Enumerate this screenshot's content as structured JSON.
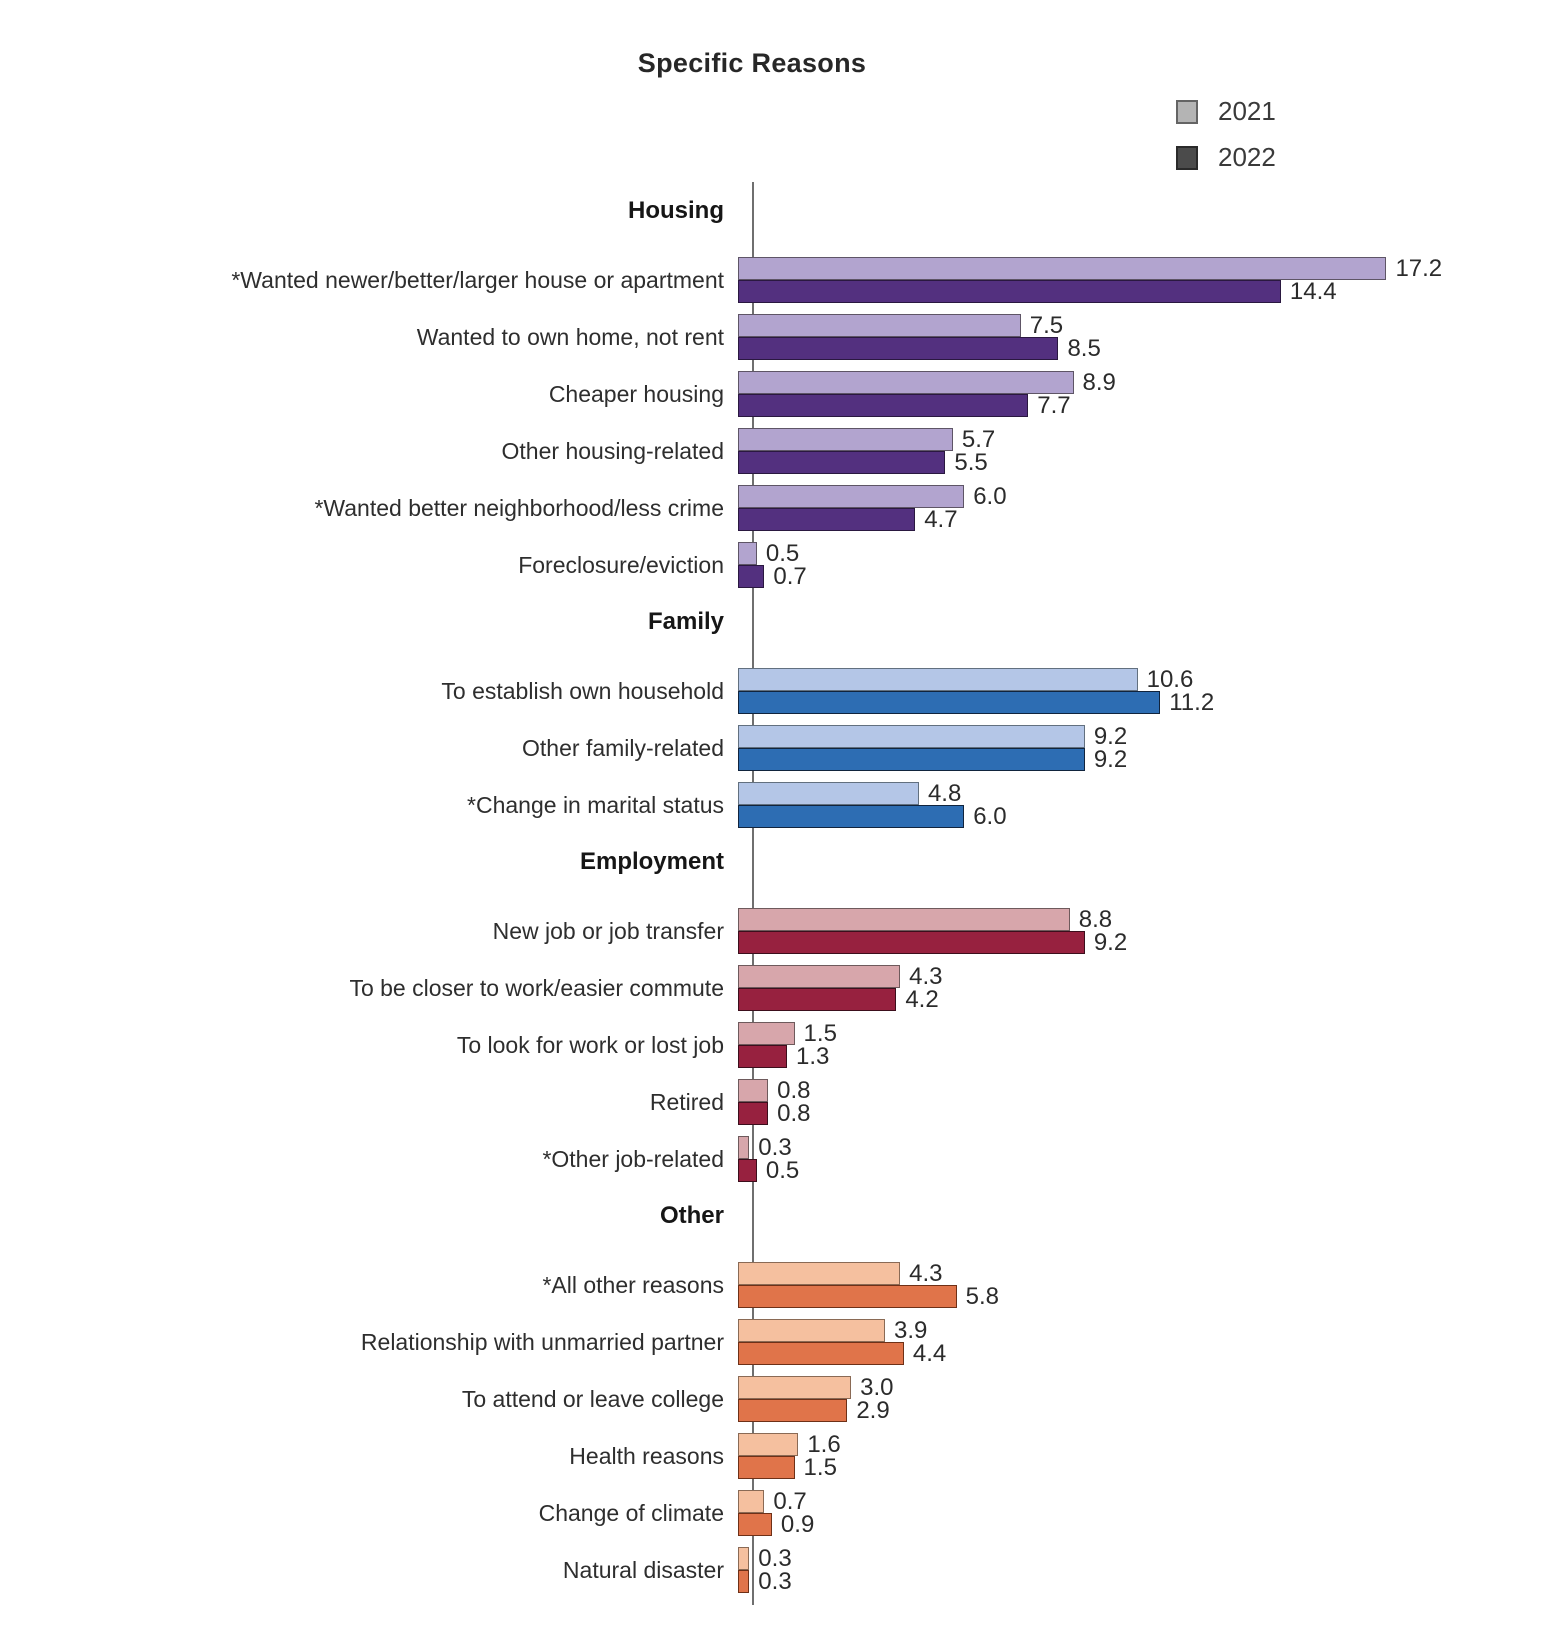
{
  "title": "Specific Reasons",
  "legend": {
    "items": [
      {
        "label": "2021",
        "fill": "#b4b4b4",
        "border": "#646464"
      },
      {
        "label": "2022",
        "fill": "#4b4b4b",
        "border": "#2a2a2a"
      }
    ]
  },
  "chart_data": {
    "type": "bar",
    "orientation": "horizontal",
    "title": "Specific Reasons",
    "series_names": [
      "2021",
      "2022"
    ],
    "xlim": [
      0,
      18
    ],
    "grid": false,
    "legend_position": "top-right",
    "value_label_format": "one-decimal",
    "sections": [
      {
        "name": "Housing",
        "color_2021": "#b2a4cf",
        "color_2022": "#53307f",
        "border_2021": "#5e5566",
        "border_2022": "#2a1840",
        "rows": [
          {
            "label": "*Wanted newer/better/larger house or apartment",
            "v2021": 17.2,
            "v2022": 14.4
          },
          {
            "label": "Wanted to own home, not rent",
            "v2021": 7.5,
            "v2022": 8.5
          },
          {
            "label": "Cheaper housing",
            "v2021": 8.9,
            "v2022": 7.7
          },
          {
            "label": "Other housing-related",
            "v2021": 5.7,
            "v2022": 5.5
          },
          {
            "label": "*Wanted better neighborhood/less crime",
            "v2021": 6.0,
            "v2022": 4.7
          },
          {
            "label": "Foreclosure/eviction",
            "v2021": 0.5,
            "v2022": 0.7
          }
        ]
      },
      {
        "name": "Family",
        "color_2021": "#b4c6e7",
        "color_2022": "#2d6db3",
        "border_2021": "#62707f",
        "border_2022": "#11243d",
        "rows": [
          {
            "label": "To establish own household",
            "v2021": 10.6,
            "v2022": 11.2
          },
          {
            "label": "Other family-related",
            "v2021": 9.2,
            "v2022": 9.2
          },
          {
            "label": "*Change in marital status",
            "v2021": 4.8,
            "v2022": 6.0
          }
        ]
      },
      {
        "name": "Employment",
        "color_2021": "#d7a6ab",
        "color_2022": "#97213f",
        "border_2021": "#6e5a5c",
        "border_2022": "#3c0e1c",
        "rows": [
          {
            "label": "New job or job transfer",
            "v2021": 8.8,
            "v2022": 9.2
          },
          {
            "label": "To be closer to work/easier commute",
            "v2021": 4.3,
            "v2022": 4.2
          },
          {
            "label": "To look for work or lost job",
            "v2021": 1.5,
            "v2022": 1.3
          },
          {
            "label": "Retired",
            "v2021": 0.8,
            "v2022": 0.8
          },
          {
            "label": "*Other job-related",
            "v2021": 0.3,
            "v2022": 0.5
          }
        ]
      },
      {
        "name": "Other",
        "color_2021": "#f5c09f",
        "color_2022": "#e0744a",
        "border_2021": "#8a6a55",
        "border_2022": "#6e3017",
        "rows": [
          {
            "label": "*All other reasons",
            "v2021": 4.3,
            "v2022": 5.8
          },
          {
            "label": "Relationship with unmarried partner",
            "v2021": 3.9,
            "v2022": 4.4
          },
          {
            "label": "To attend or leave college",
            "v2021": 3.0,
            "v2022": 2.9
          },
          {
            "label": "Health reasons",
            "v2021": 1.6,
            "v2022": 1.5
          },
          {
            "label": "Change of climate",
            "v2021": 0.7,
            "v2022": 0.9
          },
          {
            "label": "Natural disaster",
            "v2021": 0.3,
            "v2022": 0.3
          }
        ]
      }
    ]
  }
}
